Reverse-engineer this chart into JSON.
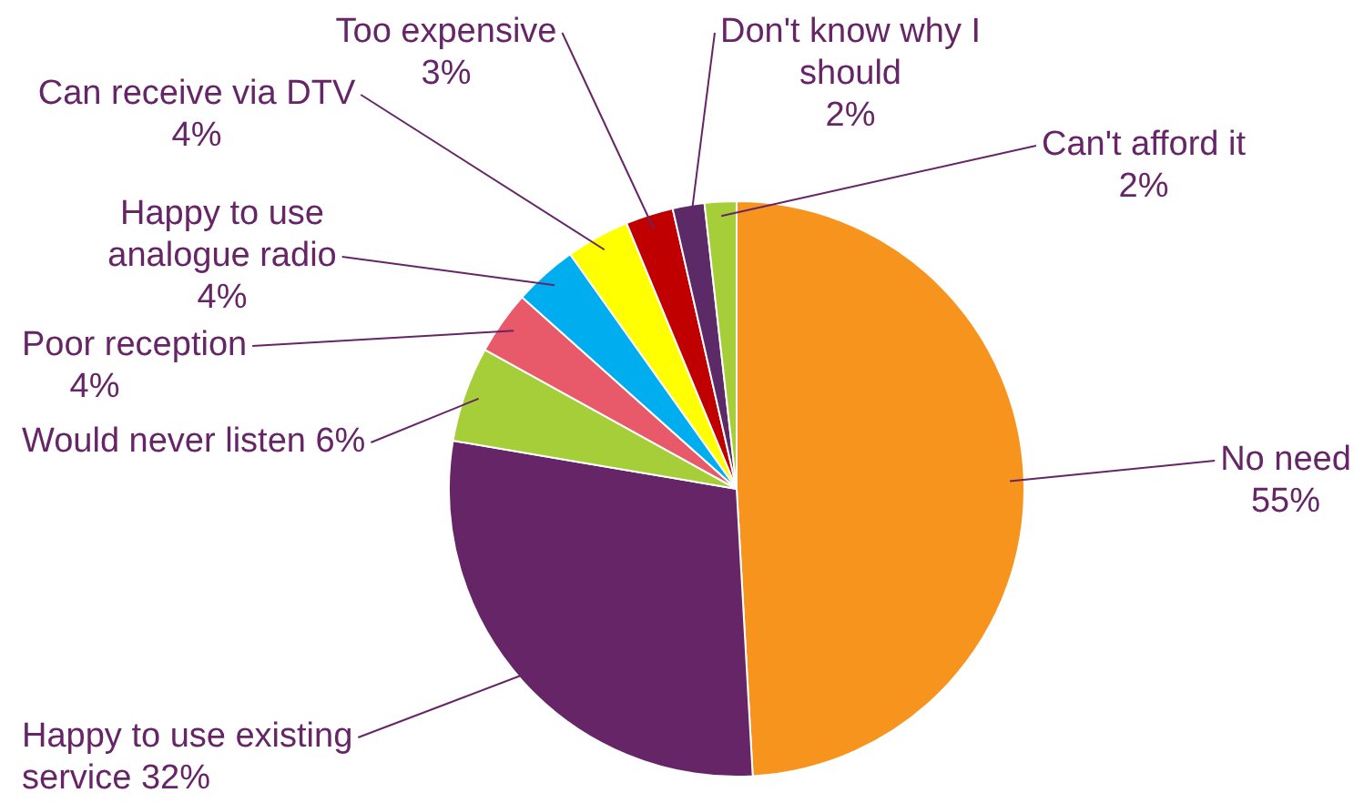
{
  "chart_data": {
    "type": "pie",
    "categories": [
      "No need",
      "Happy to use existing\nservice",
      "Would never listen",
      "Poor reception",
      "Happy to use\nanalogue radio",
      "Can receive via DTV",
      "Too expensive",
      "Don't know why I\nshould",
      "Can't afford it"
    ],
    "values": [
      55,
      32,
      6,
      4,
      4,
      4,
      3,
      2,
      2
    ],
    "value_labels": [
      "55%",
      "32%",
      "6%",
      "4%",
      "4%",
      "4%",
      "3%",
      "2%",
      "2%"
    ],
    "colors": [
      "#f7941d",
      "#662566",
      "#a6ce39",
      "#e8596a",
      "#00adef",
      "#ffff00",
      "#c00000",
      "#5c2a66",
      "#a6ce39"
    ],
    "legend": false
  }
}
